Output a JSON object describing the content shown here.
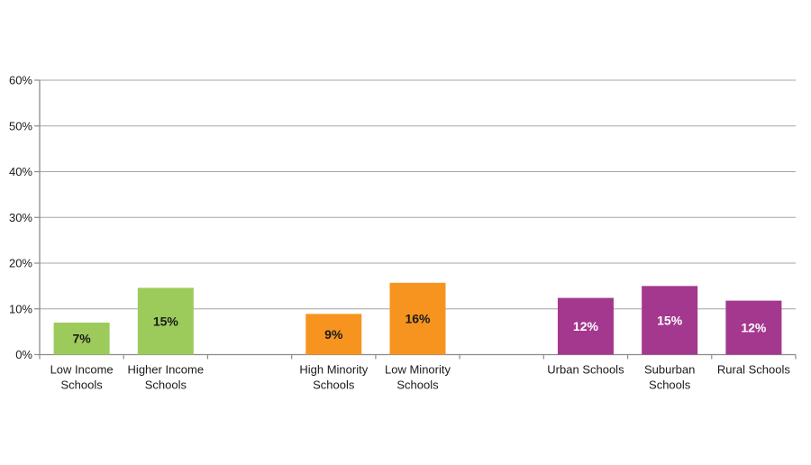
{
  "page": {
    "background_color": "#FFFFFF"
  },
  "chart_data": {
    "type": "bar",
    "title": "",
    "xlabel": "",
    "ylabel": "",
    "categories": [
      "Low Income Schools",
      "Higher Income Schools",
      "High Minority Schools",
      "Low Minority Schools",
      "Urban Schools",
      "Suburban Schools",
      "Rural Schools"
    ],
    "category_label_lines": [
      [
        "Low Income",
        "Schools"
      ],
      [
        "Higher Income",
        "Schools"
      ],
      [
        "High Minority",
        "Schools"
      ],
      [
        "Low Minority",
        "Schools"
      ],
      [
        "Urban Schools"
      ],
      [
        "Suburban",
        "Schools"
      ],
      [
        "Rural Schools"
      ]
    ],
    "values": [
      7,
      15,
      9,
      16,
      12,
      15,
      12
    ],
    "data_labels": [
      "7%",
      "15%",
      "9%",
      "16%",
      "12%",
      "15%",
      "12%"
    ],
    "precise_bar_heights": [
      7.0,
      14.6,
      8.9,
      15.7,
      12.4,
      15.0,
      11.8
    ],
    "groups": [
      {
        "name": "income",
        "color": "#9CCB5C",
        "data_label_color": "#1A1A1A",
        "indices": [
          0,
          1
        ]
      },
      {
        "name": "minority",
        "color": "#F7941F",
        "data_label_color": "#1A1A1A",
        "indices": [
          2,
          3
        ]
      },
      {
        "name": "locale",
        "color": "#A3388E",
        "data_label_color": "#FFFFFF",
        "indices": [
          4,
          5,
          6
        ]
      }
    ],
    "ylim": [
      0,
      60
    ],
    "y_tick_step": 10,
    "y_tick_labels": [
      "0%",
      "10%",
      "20%",
      "30%",
      "40%",
      "50%",
      "60%"
    ],
    "grid": true,
    "legend": "none",
    "colors": {
      "gridline": "#A6A6A6",
      "axis_line": "#8C8C8C",
      "tick_label_text": "#1A1A1A",
      "category_label_text": "#1A1A1A"
    }
  }
}
